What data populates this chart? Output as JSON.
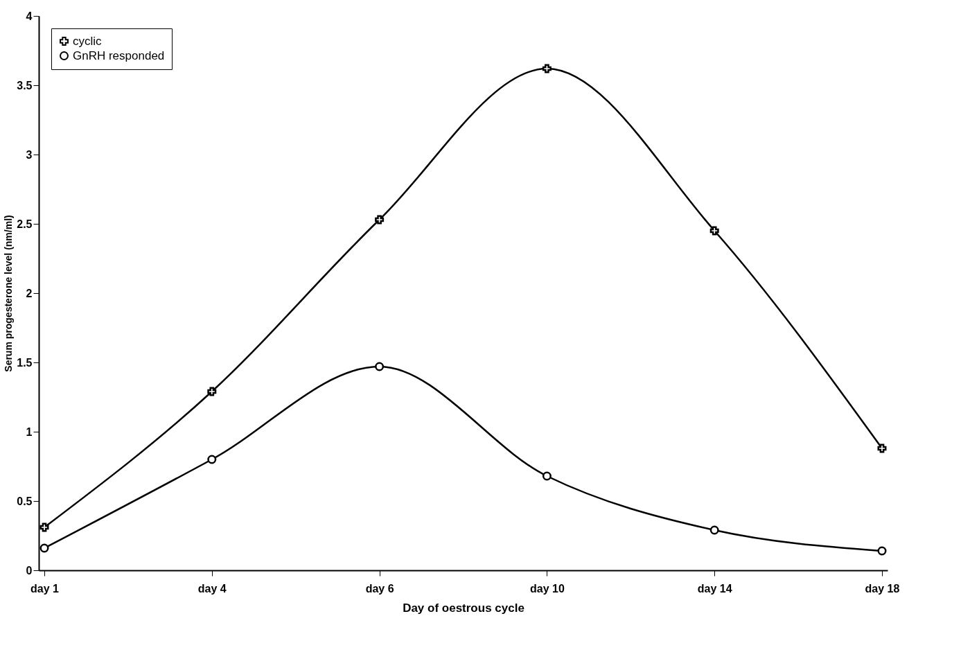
{
  "chart_data": {
    "type": "line",
    "xlabel": "Day of oestrous cycle",
    "ylabel": "Serum progesterone level (nm/ml)",
    "categories": [
      "day 1",
      "day 4",
      "day 6",
      "day 10",
      "day 14",
      "day 18"
    ],
    "series": [
      {
        "name": "cyclic",
        "color": "#000000",
        "marker": "cross",
        "values": [
          0.31,
          1.29,
          2.53,
          3.62,
          2.45,
          0.88
        ]
      },
      {
        "name": "GnRH responded",
        "color": "#000000",
        "marker": "circle",
        "values": [
          0.16,
          0.8,
          1.47,
          0.68,
          0.29,
          0.14
        ]
      }
    ],
    "ylim": [
      0,
      4
    ],
    "yticks": [
      0,
      0.5,
      1,
      1.5,
      2,
      2.5,
      3,
      3.5,
      4
    ],
    "grid": false,
    "legend": "top left",
    "line_style": "solid"
  }
}
